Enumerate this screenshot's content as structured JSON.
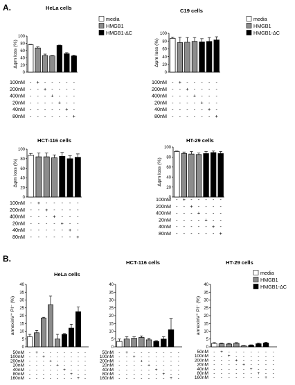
{
  "figure": {
    "label_a": "A.",
    "label_b": "B.",
    "legend_items": [
      "media",
      "HMGB1",
      "HMGB1-ΔC"
    ]
  },
  "colors": {
    "media": "#ffffff",
    "hmgb1": "#8c8c8c",
    "hmgb1_dc": "#000000"
  },
  "chart_data": [
    {
      "type": "bar",
      "title": "HeLa cells",
      "ylabel": "Δψm loss (%)",
      "ylim": [
        0,
        100
      ],
      "yticks": [
        0,
        20,
        40,
        60,
        80,
        100
      ],
      "bar_groups": [
        "media",
        "HMGB1",
        "HMGB1",
        "HMGB1",
        "HMGB1-ΔC",
        "HMGB1-ΔC",
        "HMGB1-ΔC"
      ],
      "values": [
        76,
        67,
        46,
        45,
        74,
        51,
        45
      ],
      "errors": [
        1,
        3,
        4,
        1,
        1,
        3,
        2
      ],
      "treatment_rows": [
        "100nM",
        "200nM",
        "400nM",
        "20nM",
        "40nM",
        "80nM"
      ],
      "treatment_signs": [
        [
          "-",
          "+",
          "-",
          "-",
          "-",
          "-",
          "-"
        ],
        [
          "-",
          "-",
          "+",
          "-",
          "-",
          "-",
          "-"
        ],
        [
          "-",
          "-",
          "-",
          "+",
          "-",
          "-",
          "-"
        ],
        [
          "-",
          "-",
          "-",
          "-",
          "+",
          "-",
          "-"
        ],
        [
          "-",
          "-",
          "-",
          "-",
          "-",
          "+",
          "-"
        ],
        [
          "-",
          "-",
          "-",
          "-",
          "-",
          "-",
          "+"
        ]
      ],
      "legend": [
        "media",
        "HMGB1",
        "HMGB1-ΔC"
      ],
      "legend_position": "right"
    },
    {
      "type": "bar",
      "title": "C19 cells",
      "ylabel": "Δψm loss (%)",
      "ylim": [
        0,
        100
      ],
      "yticks": [
        0,
        20,
        40,
        60,
        80,
        100
      ],
      "bar_groups": [
        "media",
        "HMGB1",
        "HMGB1",
        "HMGB1",
        "HMGB1-ΔC",
        "HMGB1-ΔC",
        "HMGB1-ΔC"
      ],
      "values": [
        87,
        76,
        77,
        79,
        78,
        79,
        83
      ],
      "errors": [
        3,
        14,
        12,
        10,
        8,
        10,
        8
      ],
      "treatment_rows": [
        "100nM",
        "200nM",
        "400nM",
        "20nM",
        "40nM",
        "80nM"
      ],
      "treatment_signs": [
        [
          "-",
          "+",
          "-",
          "-",
          "-",
          "-",
          "-"
        ],
        [
          "-",
          "-",
          "+",
          "-",
          "-",
          "-",
          "-"
        ],
        [
          "-",
          "-",
          "-",
          "+",
          "-",
          "-",
          "-"
        ],
        [
          "-",
          "-",
          "-",
          "-",
          "+",
          "-",
          "-"
        ],
        [
          "-",
          "-",
          "-",
          "-",
          "-",
          "+",
          "-"
        ],
        [
          "-",
          "-",
          "-",
          "-",
          "-",
          "-",
          "+"
        ]
      ],
      "legend": [
        "media",
        "HMGB1",
        "HMGB1-ΔC"
      ],
      "legend_position": "right"
    },
    {
      "type": "bar",
      "title": "HCT-116 cells",
      "ylabel": "Δψm loss (%)",
      "ylim": [
        0,
        100
      ],
      "yticks": [
        0,
        20,
        40,
        60,
        80,
        100
      ],
      "bar_groups": [
        "media",
        "HMGB1",
        "HMGB1",
        "HMGB1",
        "HMGB1-ΔC",
        "HMGB1-ΔC",
        "HMGB1-ΔC"
      ],
      "values": [
        87,
        84,
        84,
        82,
        85,
        80,
        83
      ],
      "errors": [
        4,
        8,
        8,
        6,
        8,
        6,
        7
      ],
      "treatment_rows": [
        "100nM",
        "200nM",
        "400nM",
        "20nM",
        "40nM",
        "80nM"
      ],
      "treatment_signs": [
        [
          "-",
          "+",
          "-",
          "-",
          "-",
          "-",
          "-"
        ],
        [
          "-",
          "-",
          "+",
          "-",
          "-",
          "-",
          "-"
        ],
        [
          "-",
          "-",
          "-",
          "+",
          "-",
          "-",
          "-"
        ],
        [
          "-",
          "-",
          "-",
          "-",
          "+",
          "-",
          "-"
        ],
        [
          "-",
          "-",
          "-",
          "-",
          "-",
          "+",
          "-"
        ],
        [
          "-",
          "-",
          "-",
          "-",
          "-",
          "-",
          "+"
        ]
      ]
    },
    {
      "type": "bar",
      "title": "HT-29 cells",
      "ylabel": "Δψm loss (%)",
      "ylim": [
        0,
        100
      ],
      "yticks": [
        0,
        20,
        40,
        60,
        80,
        100
      ],
      "bar_groups": [
        "media",
        "HMGB1",
        "HMGB1",
        "HMGB1",
        "HMGB1-ΔC",
        "HMGB1-ΔC",
        "HMGB1-ΔC"
      ],
      "values": [
        91,
        87,
        86,
        85,
        87,
        89,
        87
      ],
      "errors": [
        1,
        3,
        5,
        3,
        4,
        3,
        4
      ],
      "treatment_rows": [
        "100nM",
        "200nM",
        "400nM",
        "20nM",
        "40nM",
        "80nM"
      ],
      "treatment_signs": [
        [
          "-",
          "+",
          "-",
          "-",
          "-",
          "-",
          "-"
        ],
        [
          "-",
          "-",
          "+",
          "-",
          "-",
          "-",
          "-"
        ],
        [
          "-",
          "-",
          "-",
          "+",
          "-",
          "-",
          "-"
        ],
        [
          "-",
          "-",
          "-",
          "-",
          "+",
          "-",
          "-"
        ],
        [
          "-",
          "-",
          "-",
          "-",
          "-",
          "+",
          "-"
        ],
        [
          "-",
          "-",
          "-",
          "-",
          "-",
          "-",
          "+"
        ]
      ]
    },
    {
      "type": "bar",
      "title": "HeLa cells",
      "ylabel": "annexinV⁺ PI⁻ (%)",
      "ylim": [
        0,
        40
      ],
      "yticks": [
        0,
        5,
        10,
        15,
        20,
        25,
        30,
        35,
        40
      ],
      "bar_groups": [
        "media",
        "HMGB1",
        "HMGB1",
        "HMGB1",
        "HMGB1",
        "HMGB1-ΔC",
        "HMGB1-ΔC",
        "HMGB1-ΔC",
        "HMGB1-ΔC"
      ],
      "values": [
        6.5,
        9,
        18.5,
        27,
        5,
        8,
        12,
        22.5,
        0
      ],
      "errors": [
        1.5,
        1.5,
        0.5,
        5.5,
        3,
        0.5,
        2.5,
        3,
        0
      ],
      "treatment_rows": [
        "50nM",
        "100nM",
        "200nM",
        "20nM",
        "40nM",
        "80nM",
        "160nM"
      ],
      "treatment_signs": [
        [
          "-",
          "+",
          "-",
          "-",
          "-",
          "-",
          "-",
          "-",
          "-"
        ],
        [
          "-",
          "-",
          "+",
          "-",
          "-",
          "-",
          "-",
          "-",
          "-"
        ],
        [
          "-",
          "-",
          "-",
          "+",
          "-",
          "-",
          "-",
          "-",
          "-"
        ],
        [
          "-",
          "-",
          "-",
          "-",
          "+",
          "-",
          "-",
          "-",
          "-"
        ],
        [
          "-",
          "-",
          "-",
          "-",
          "-",
          "+",
          "-",
          "-",
          "-"
        ],
        [
          "-",
          "-",
          "-",
          "-",
          "-",
          "-",
          "+",
          "-",
          "-"
        ],
        [
          "-",
          "-",
          "-",
          "-",
          "-",
          "-",
          "-",
          "+",
          "-"
        ]
      ]
    },
    {
      "type": "bar",
      "title": "HCT-116 cells",
      "ylabel": "",
      "ylim": [
        0,
        40
      ],
      "yticks": [
        0,
        5,
        10,
        15,
        20,
        25,
        30,
        35,
        40
      ],
      "bar_groups": [
        "media",
        "HMGB1",
        "HMGB1",
        "HMGB1",
        "HMGB1",
        "HMGB1-ΔC",
        "HMGB1-ΔC",
        "HMGB1-ΔC",
        "HMGB1-ΔC"
      ],
      "values": [
        3.5,
        5,
        5.5,
        6,
        4.5,
        3.5,
        5,
        11,
        0
      ],
      "errors": [
        1.5,
        1.5,
        1,
        1,
        1,
        0.5,
        1.5,
        7,
        0
      ],
      "treatment_rows": [
        "50nM",
        "100nM",
        "200nM",
        "20nM",
        "40nM",
        "80nM",
        "160nM"
      ],
      "treatment_signs": [
        [
          "-",
          "+",
          "-",
          "-",
          "-",
          "-",
          "-",
          "-",
          "-"
        ],
        [
          "-",
          "-",
          "+",
          "-",
          "-",
          "-",
          "-",
          "-",
          "-"
        ],
        [
          "-",
          "-",
          "-",
          "+",
          "-",
          "-",
          "-",
          "-",
          "-"
        ],
        [
          "-",
          "-",
          "-",
          "-",
          "+",
          "-",
          "-",
          "-",
          "-"
        ],
        [
          "-",
          "-",
          "-",
          "-",
          "-",
          "+",
          "-",
          "-",
          "-"
        ],
        [
          "-",
          "-",
          "-",
          "-",
          "-",
          "-",
          "+",
          "-",
          "-"
        ],
        [
          "-",
          "-",
          "-",
          "-",
          "-",
          "-",
          "-",
          "+",
          "-"
        ]
      ]
    },
    {
      "type": "bar",
      "title": "HT-29 cells",
      "ylabel": "annexinV⁺ PI⁻ (%)",
      "ylim": [
        0,
        40
      ],
      "yticks": [
        0,
        5,
        10,
        15,
        20,
        25,
        30,
        35,
        40
      ],
      "bar_groups": [
        "media",
        "HMGB1",
        "HMGB1",
        "HMGB1",
        "HMGB1",
        "HMGB1-ΔC",
        "HMGB1-ΔC",
        "HMGB1-ΔC",
        "HMGB1-ΔC"
      ],
      "values": [
        2.2,
        2,
        1.8,
        2.3,
        0.6,
        1,
        2,
        2.5,
        0
      ],
      "errors": [
        0.5,
        0.4,
        0.4,
        0.4,
        0.2,
        0.3,
        0.4,
        0.4,
        0
      ],
      "treatment_rows": [
        "50nM",
        "100nM",
        "200nM",
        "20nM",
        "40nM",
        "80nM",
        "160nM"
      ],
      "treatment_signs": [
        [
          "-",
          "+",
          "-",
          "-",
          "-",
          "-",
          "-",
          "-",
          "-"
        ],
        [
          "-",
          "-",
          "+",
          "-",
          "-",
          "-",
          "-",
          "-",
          "-"
        ],
        [
          "-",
          "-",
          "-",
          "+",
          "-",
          "-",
          "-",
          "-",
          "-"
        ],
        [
          "-",
          "-",
          "-",
          "-",
          "+",
          "-",
          "-",
          "-",
          "-"
        ],
        [
          "-",
          "-",
          "-",
          "-",
          "-",
          "+",
          "-",
          "-",
          "-"
        ],
        [
          "-",
          "-",
          "-",
          "-",
          "-",
          "-",
          "+",
          "-",
          "-"
        ],
        [
          "-",
          "-",
          "-",
          "-",
          "-",
          "-",
          "-",
          "+",
          "-"
        ]
      ],
      "legend": [
        "media",
        "HMGB1",
        "HMGB1-ΔC"
      ],
      "legend_position": "top-right"
    }
  ]
}
